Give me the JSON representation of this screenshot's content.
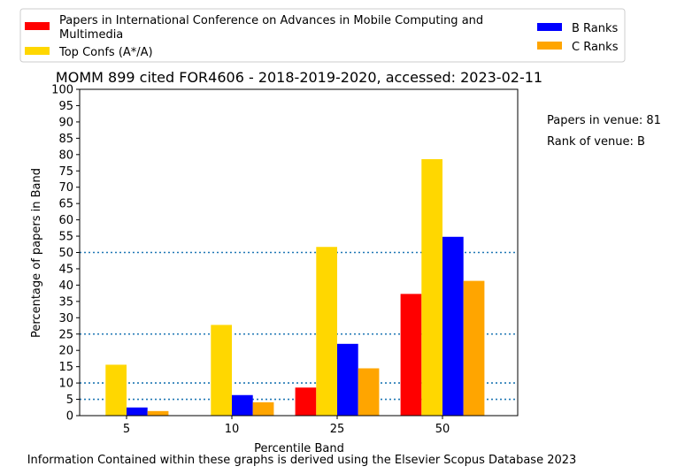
{
  "chart_data": {
    "type": "bar",
    "title": "MOMM 899 cited FOR4606 - 2018-2019-2020, accessed: 2023-02-11",
    "xlabel": "Percentile Band",
    "ylabel": "Percentage of papers in Band",
    "categories": [
      "5",
      "10",
      "25",
      "50"
    ],
    "ylim": [
      0,
      100
    ],
    "yticks": [
      0,
      5,
      10,
      15,
      20,
      25,
      30,
      35,
      40,
      45,
      50,
      55,
      60,
      65,
      70,
      75,
      80,
      85,
      90,
      95,
      100
    ],
    "reference_lines": [
      5,
      10,
      25,
      50
    ],
    "legend_position": "top",
    "series": [
      {
        "name": "Papers in International Conference on Advances in Mobile Computing and Multimedia",
        "color": "#ff0000",
        "values": [
          0,
          0,
          8.6,
          37.3
        ]
      },
      {
        "name": "Top Confs (A*/A)",
        "color": "#ffd700",
        "values": [
          15.6,
          27.8,
          51.7,
          78.6
        ]
      },
      {
        "name": "B Ranks",
        "color": "#0000ff",
        "values": [
          2.5,
          6.3,
          22.0,
          54.8
        ]
      },
      {
        "name": "C Ranks",
        "color": "#ffa500",
        "values": [
          1.4,
          4.1,
          14.5,
          41.3
        ]
      }
    ]
  },
  "legend": {
    "red_line1": "Papers in International Conference on Advances in Mobile Computing and",
    "red_line2": "Multimedia",
    "top": "Top Confs (A*/A)",
    "b": "B Ranks",
    "c": "C Ranks"
  },
  "side_info": {
    "papers": "Papers in venue: 81",
    "rank": "Rank of venue: B"
  },
  "footer": "Information Contained within these graphs is derived using the Elsevier Scopus Database 2023",
  "colors": {
    "refline": "#1f77b4"
  }
}
